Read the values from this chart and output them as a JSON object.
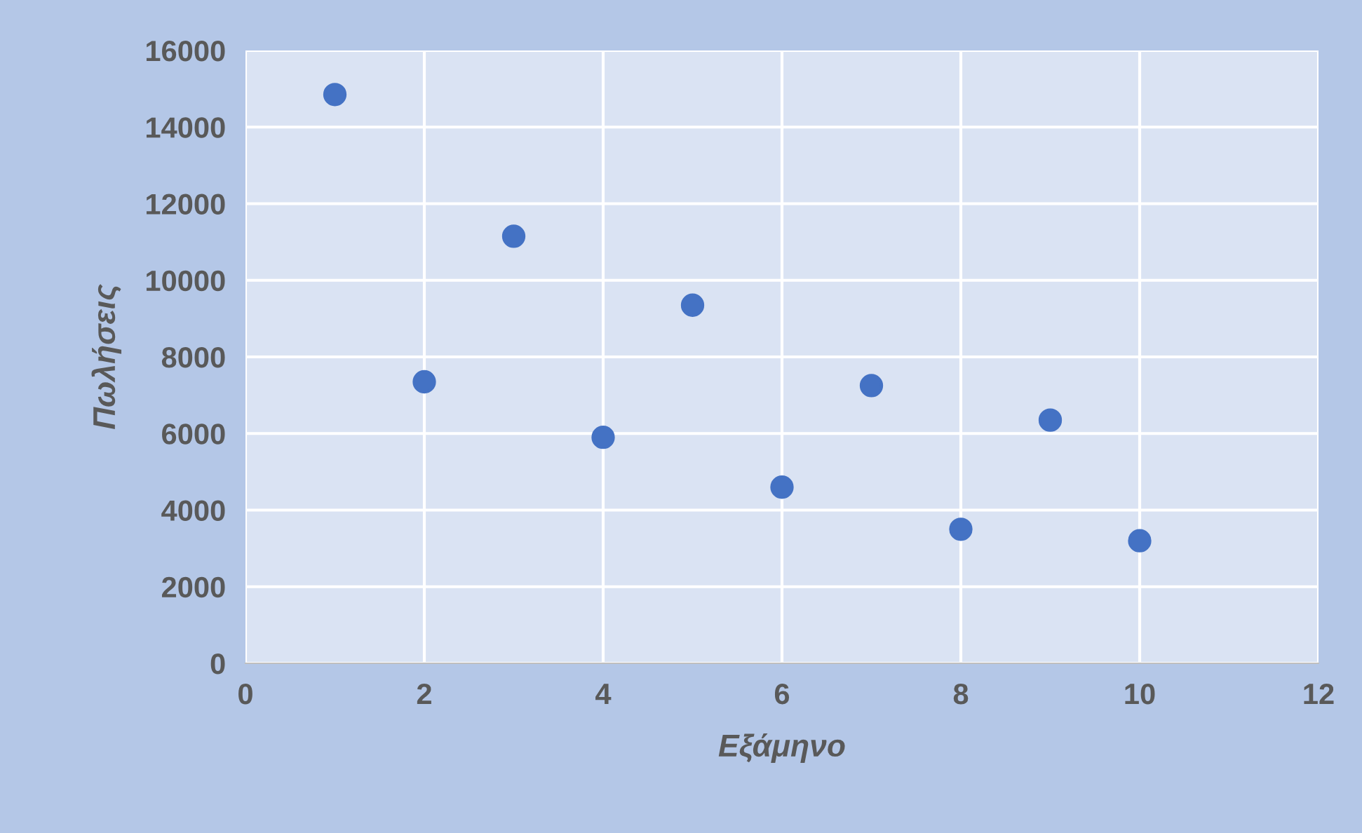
{
  "chart_data": {
    "type": "scatter",
    "xlabel": "Εξάμηνο",
    "ylabel": "Πωλήσεις",
    "x": [
      1,
      2,
      3,
      4,
      5,
      6,
      7,
      8,
      9,
      10
    ],
    "series": [
      {
        "color": "#4472c4",
        "values": [
          14850,
          7350,
          11150,
          5900,
          9350,
          4600,
          7250,
          3500,
          6350,
          3200
        ]
      }
    ],
    "xlim": [
      0,
      12
    ],
    "xticks": [
      0,
      2,
      4,
      6,
      8,
      10,
      12
    ],
    "ylim": [
      0,
      16000
    ],
    "yticks": [
      0,
      2000,
      4000,
      6000,
      8000,
      10000,
      12000,
      14000,
      16000
    ],
    "grid": true,
    "marker": "circle"
  }
}
